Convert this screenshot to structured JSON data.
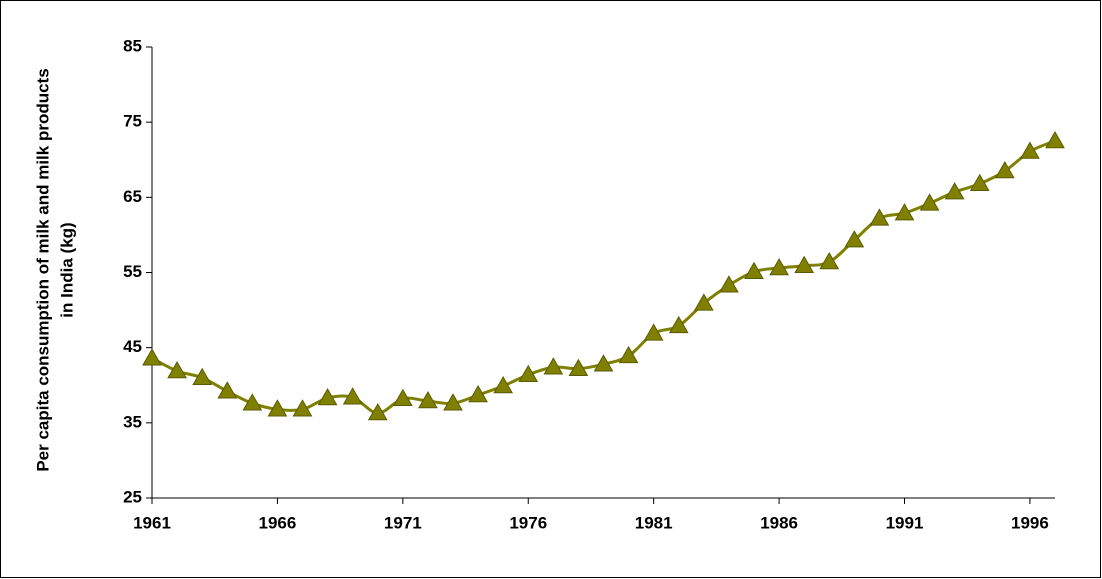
{
  "chart_data": {
    "type": "line",
    "ylabel": [
      "Per capita consumption of milk and milk products",
      "in India (kg)"
    ],
    "x": [
      1961,
      1962,
      1963,
      1964,
      1965,
      1966,
      1967,
      1968,
      1969,
      1970,
      1971,
      1972,
      1973,
      1974,
      1975,
      1976,
      1977,
      1978,
      1979,
      1980,
      1981,
      1982,
      1983,
      1984,
      1985,
      1986,
      1987,
      1988,
      1989,
      1990,
      1991,
      1992,
      1993,
      1994,
      1995,
      1996,
      1997
    ],
    "series": [
      {
        "name": "Per capita consumption",
        "color": "#808000",
        "marker": "triangle",
        "values": [
          43.6,
          41.9,
          41,
          39.2,
          37.6,
          36.8,
          36.8,
          38.3,
          38.4,
          36.3,
          38.2,
          37.9,
          37.6,
          38.7,
          39.9,
          41.4,
          42.4,
          42.2,
          42.8,
          43.9,
          46.9,
          47.9,
          50.9,
          53.3,
          55.1,
          55.6,
          55.9,
          56.4,
          59.3,
          62.2,
          62.9,
          64.2,
          65.7,
          66.8,
          68.5,
          71.1,
          72.5
        ]
      }
    ],
    "xlim": [
      1961,
      1997
    ],
    "xticks": [
      1961,
      1966,
      1971,
      1976,
      1981,
      1986,
      1991,
      1996
    ],
    "ylim": [
      25,
      85
    ],
    "yticks": [
      25,
      35,
      45,
      55,
      65,
      75,
      85
    ],
    "grid": false,
    "smooth": true
  }
}
